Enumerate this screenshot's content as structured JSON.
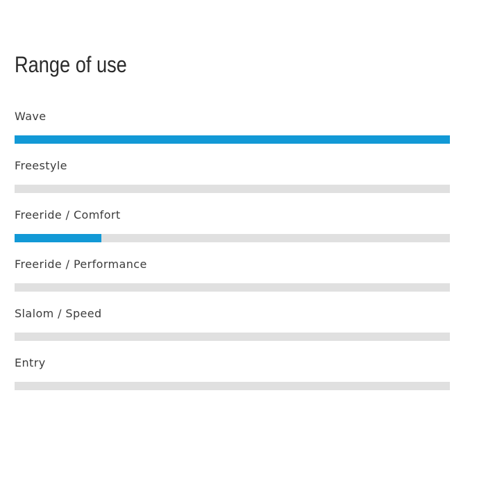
{
  "page": {
    "background": "#ffffff",
    "title": "Range of use"
  },
  "chart_data": {
    "type": "bar",
    "orientation": "horizontal",
    "title": "Range of use",
    "categories": [
      "Wave",
      "Freestyle",
      "Freeride / Comfort",
      "Freeride / Performance",
      "Slalom / Speed",
      "Entry"
    ],
    "values": [
      100,
      0,
      20,
      0,
      0,
      0
    ],
    "value_unit": "percent",
    "xlim": [
      0,
      100
    ],
    "grid": false,
    "legend": "none",
    "colors": {
      "bar_fill": "#1299d6",
      "bar_track": "#e0e0e0",
      "title_text": "#2b2b2b",
      "label_text": "#3c3c3c"
    }
  }
}
